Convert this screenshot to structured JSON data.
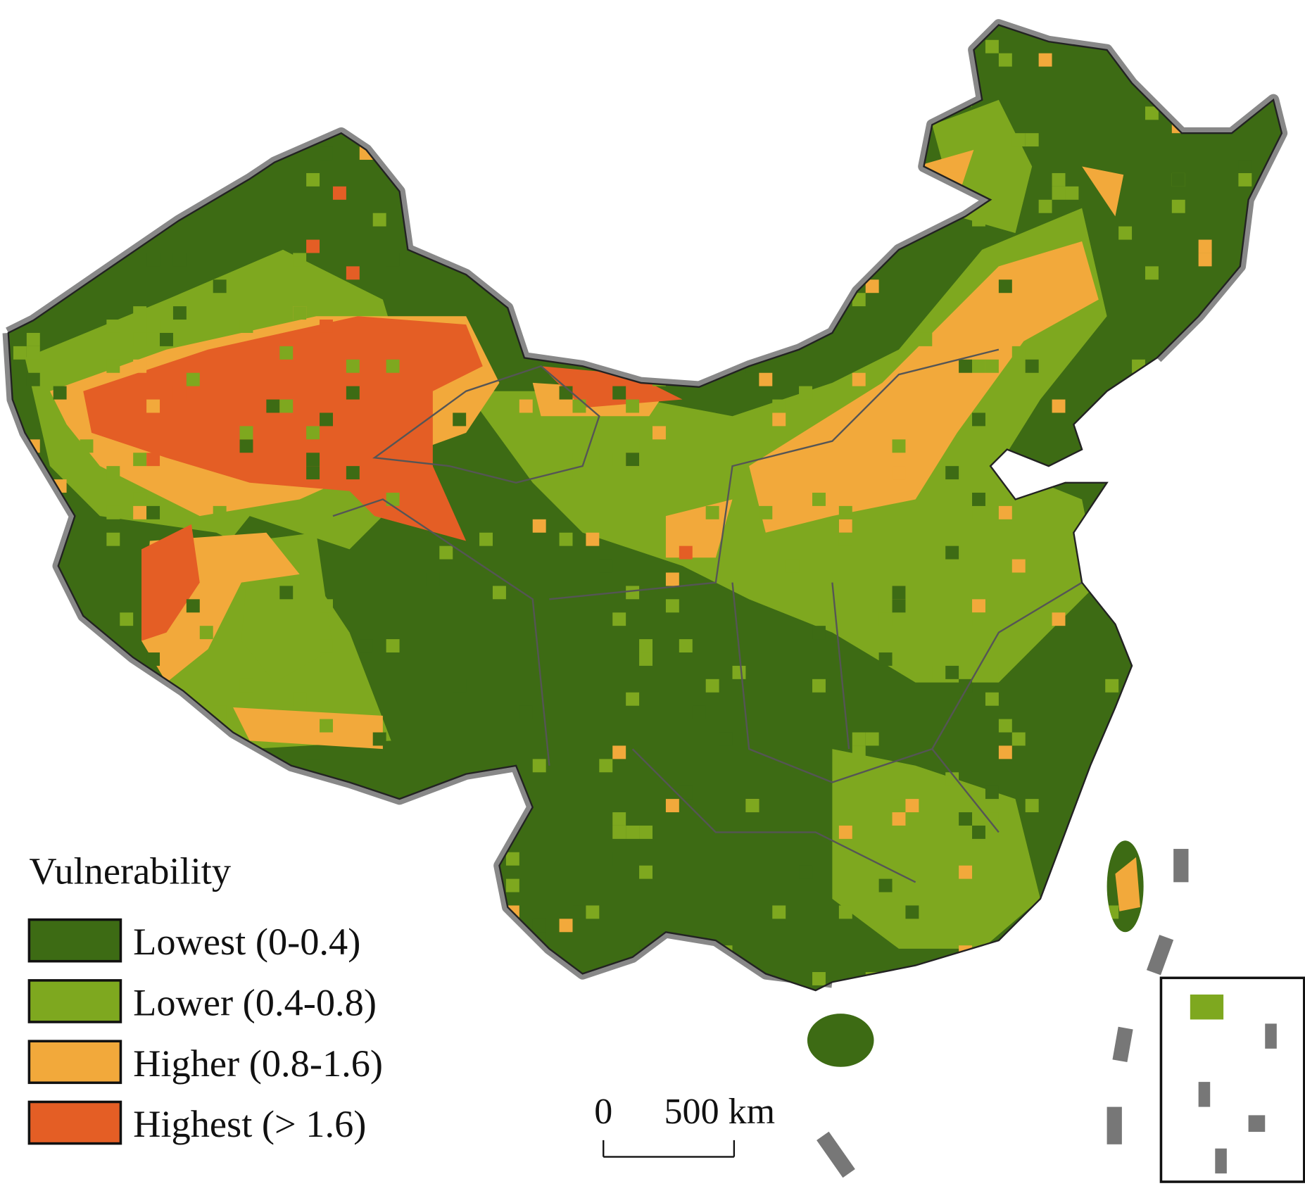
{
  "legend": {
    "title": "Vulnerability",
    "items": [
      {
        "label": "Lowest (0-0.4)",
        "color": "#3d6b14"
      },
      {
        "label": "Lower (0.4-0.8)",
        "color": "#7ea81f"
      },
      {
        "label": "Higher (0.8-1.6)",
        "color": "#f2a93b"
      },
      {
        "label": "Highest (> 1.6)",
        "color": "#e45e25"
      }
    ]
  },
  "scale_bar": {
    "start": "0",
    "end": "500 km"
  }
}
